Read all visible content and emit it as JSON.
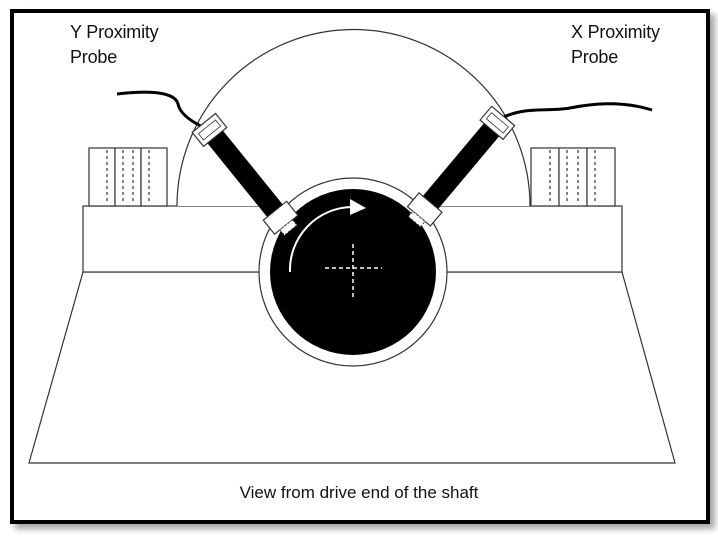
{
  "labels": {
    "y_probe_line1": "Y Proximity",
    "y_probe_line2": "Probe",
    "x_probe_line1": "X Proximity",
    "x_probe_line2": "Probe",
    "caption": "View from drive end of the shaft"
  },
  "colors": {
    "line": "#333333",
    "shaft": "#000000",
    "background": "#ffffff"
  }
}
